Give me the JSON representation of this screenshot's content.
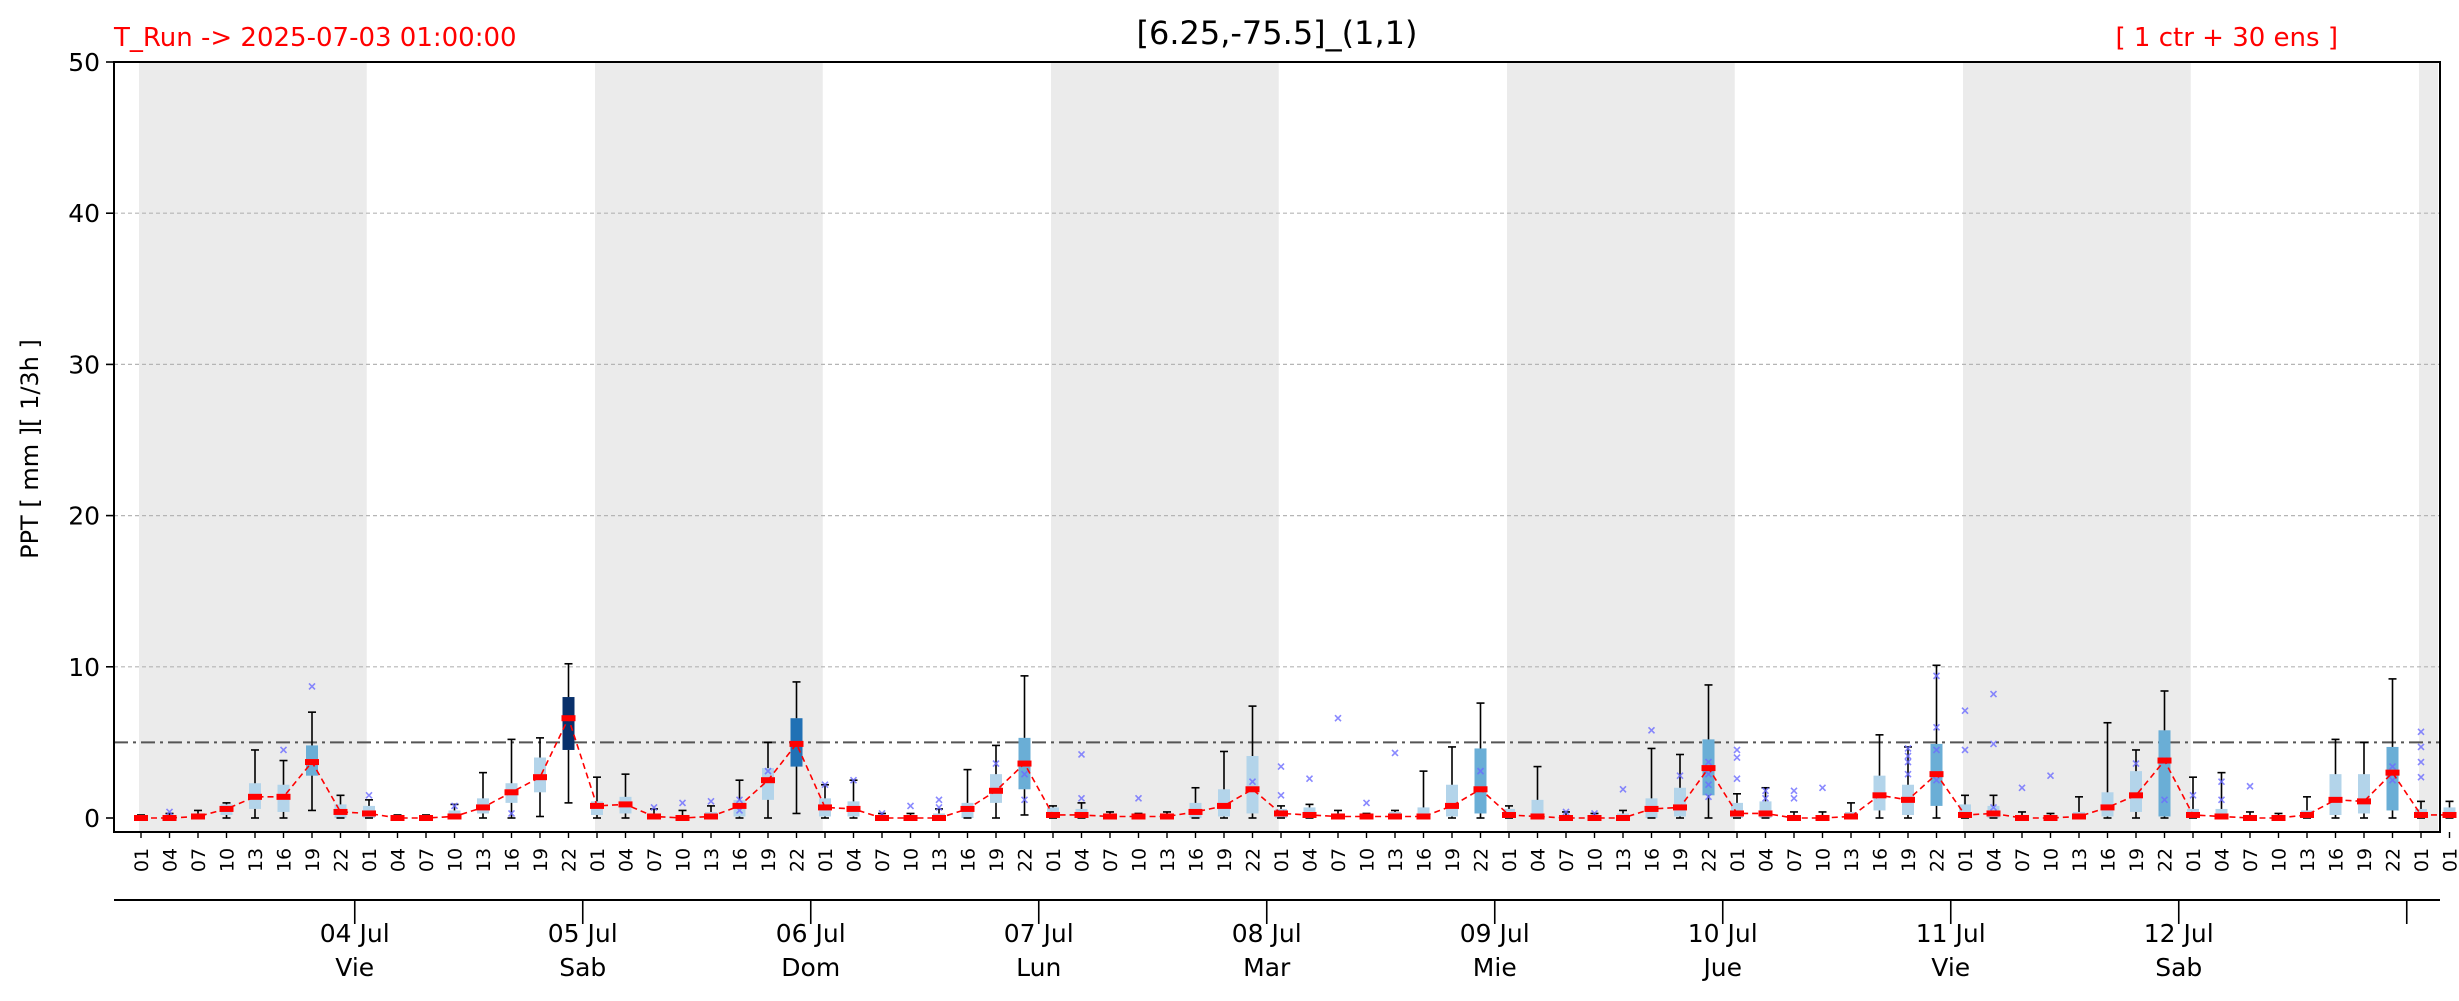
{
  "header": {
    "run_label": "T_Run -> 2025-07-03  01:00:00",
    "ensemble_label": "[ 1 ctr + 30 ens ]"
  },
  "colors": {
    "header_text": "#ff0000",
    "median_line": "#ff0000",
    "night_shade": "#ebebeb",
    "box_light": "#b3d4ea",
    "box_mid": "#6aaed6",
    "box_dark": "#2171b5",
    "box_darkest": "#08306b",
    "outlier": "#6b6bff",
    "threshold": "#555555"
  },
  "chart_data": {
    "type": "box",
    "title": "[6.25,-75.5]_(1,1)",
    "ylabel": "PPT  [ mm ][ 1/3h ]",
    "ylim": [
      0,
      50
    ],
    "yticks": [
      0,
      10,
      20,
      30,
      40,
      50
    ],
    "grid": true,
    "threshold": 5,
    "hours": [
      "01",
      "04",
      "07",
      "10",
      "13",
      "16",
      "19",
      "22"
    ],
    "days": [
      {
        "date": "",
        "weekday": ""
      },
      {
        "date": "04 Jul",
        "weekday": "Vie"
      },
      {
        "date": "05 Jul",
        "weekday": "Sab"
      },
      {
        "date": "06 Jul",
        "weekday": "Dom"
      },
      {
        "date": "07 Jul",
        "weekday": "Lun"
      },
      {
        "date": "08 Jul",
        "weekday": "Mar"
      },
      {
        "date": "09 Jul",
        "weekday": "Mie"
      },
      {
        "date": "10 Jul",
        "weekday": "Jue"
      },
      {
        "date": "11 Jul",
        "weekday": "Vie"
      },
      {
        "date": "12 Jul",
        "weekday": "Sab"
      },
      {
        "date": "",
        "weekday": ""
      }
    ],
    "final_day_hours": [
      "01"
    ],
    "median": [
      0.0,
      0.0,
      0.1,
      0.6,
      1.4,
      1.4,
      3.7,
      0.4,
      0.3,
      0.0,
      0.0,
      0.1,
      0.7,
      1.7,
      2.7,
      6.6,
      0.8,
      0.9,
      0.1,
      0.0,
      0.1,
      0.8,
      2.5,
      4.9,
      0.7,
      0.6,
      0.0,
      0.0,
      0.0,
      0.6,
      1.8,
      3.6,
      0.2,
      0.2,
      0.1,
      0.1,
      0.1,
      0.4,
      0.8,
      1.9,
      0.3,
      0.2,
      0.1,
      0.1,
      0.1,
      0.1,
      0.8,
      1.9,
      0.2,
      0.1,
      0.0,
      0.0,
      0.0,
      0.6,
      0.7,
      3.3,
      0.3,
      0.3,
      0.0,
      0.0,
      0.1,
      1.5,
      1.2,
      2.9,
      0.2,
      0.3,
      0.0,
      0.0,
      0.1,
      0.7,
      1.5,
      3.8,
      0.2,
      0.1,
      0.0,
      0.0,
      0.2,
      1.2,
      1.1,
      3.0,
      0.2,
      0.2
    ],
    "q1": [
      0,
      0,
      0,
      0.2,
      0.6,
      0.4,
      2.8,
      0,
      0,
      0,
      0,
      0,
      0.3,
      1.0,
      1.7,
      4.5,
      0.2,
      0.3,
      0,
      0,
      0,
      0.1,
      1.2,
      3.4,
      0.1,
      0.1,
      0,
      0,
      0,
      0,
      1.0,
      1.9,
      0,
      0,
      0,
      0,
      0,
      0,
      0.1,
      0.3,
      0,
      0,
      0,
      0,
      0,
      0,
      0.1,
      0.3,
      0,
      0,
      0,
      0,
      0,
      0,
      0.1,
      1.5,
      0,
      0,
      0,
      0,
      0,
      0.5,
      0.2,
      0.8,
      0,
      0,
      0,
      0,
      0,
      0.1,
      0.4,
      0.1,
      0,
      0,
      0,
      0,
      0,
      0.2,
      0.3,
      0.5,
      0,
      0
    ],
    "q3": [
      0.1,
      0.2,
      0.3,
      0.9,
      2.3,
      2.2,
      4.8,
      0.9,
      0.8,
      0.1,
      0.1,
      0.5,
      1.3,
      2.3,
      4.0,
      8.0,
      1.1,
      1.4,
      0.3,
      0.2,
      0.4,
      1.2,
      3.3,
      6.6,
      1.3,
      1.1,
      0.1,
      0.1,
      0.3,
      1.0,
      2.9,
      5.3,
      0.7,
      0.6,
      0.3,
      0.1,
      0.2,
      1.0,
      1.9,
      4.1,
      0.6,
      0.7,
      0.3,
      0.2,
      0.4,
      0.7,
      2.2,
      4.6,
      0.6,
      1.2,
      0.2,
      0.1,
      0.3,
      1.3,
      2.0,
      5.2,
      1.0,
      1.1,
      0.2,
      0.2,
      0.4,
      2.8,
      2.2,
      4.9,
      0.9,
      0.8,
      0.2,
      0.1,
      0.4,
      1.7,
      3.1,
      5.8,
      0.6,
      0.6,
      0.2,
      0.1,
      0.5,
      2.9,
      2.9,
      4.7,
      0.6,
      0.7
    ],
    "whisker_low": [
      0,
      0,
      0,
      0,
      0,
      0,
      0.5,
      0,
      0,
      0,
      0,
      0,
      0,
      0,
      0.1,
      1.0,
      0,
      0,
      0,
      0,
      0,
      0,
      0,
      0.3,
      0,
      0,
      0,
      0,
      0,
      0,
      0,
      0.2,
      0,
      0,
      0,
      0,
      0,
      0,
      0,
      0,
      0,
      0,
      0,
      0,
      0,
      0,
      0,
      0,
      0,
      0,
      0,
      0,
      0,
      0,
      0,
      0,
      0,
      0,
      0,
      0,
      0,
      0,
      0,
      0,
      0,
      0,
      0,
      0,
      0,
      0,
      0,
      0,
      0,
      0,
      0,
      0,
      0,
      0,
      0,
      0,
      0,
      0
    ],
    "whisker_high": [
      0.2,
      0.3,
      0.5,
      1.0,
      4.5,
      3.8,
      7.0,
      1.5,
      1.2,
      0.2,
      0.2,
      0.9,
      3.0,
      5.2,
      5.3,
      10.2,
      2.7,
      2.9,
      0.6,
      0.5,
      0.8,
      2.5,
      5.0,
      9.0,
      2.2,
      2.5,
      0.3,
      0.3,
      0.6,
      3.2,
      4.8,
      9.4,
      0.8,
      1.0,
      0.4,
      0.3,
      0.4,
      2.0,
      4.4,
      7.4,
      0.8,
      0.9,
      0.5,
      0.3,
      0.5,
      3.1,
      4.7,
      7.6,
      0.8,
      3.4,
      0.4,
      0.3,
      0.5,
      4.6,
      4.2,
      8.8,
      1.6,
      2.0,
      0.4,
      0.4,
      1.0,
      5.5,
      4.7,
      10.1,
      1.5,
      1.5,
      0.4,
      0.3,
      1.4,
      6.3,
      4.5,
      8.4,
      2.7,
      3.0,
      0.4,
      0.3,
      1.4,
      5.2,
      5.0,
      9.2,
      1.1,
      1.1
    ],
    "outliers": [
      [
        1,
        0.4
      ],
      [
        6,
        8.7
      ],
      [
        5,
        4.5
      ],
      [
        8,
        1.5
      ],
      [
        11,
        0.8
      ],
      [
        13,
        0.3
      ],
      [
        18,
        0.7
      ],
      [
        19,
        1.0
      ],
      [
        20,
        1.1
      ],
      [
        21,
        0.5
      ],
      [
        21,
        1.2
      ],
      [
        22,
        3.1
      ],
      [
        24,
        2.2
      ],
      [
        25,
        2.5
      ],
      [
        26,
        0.3
      ],
      [
        27,
        0.8
      ],
      [
        28,
        0.7
      ],
      [
        28,
        1.2
      ],
      [
        30,
        3.6
      ],
      [
        31,
        2.9
      ],
      [
        31,
        1.2
      ],
      [
        33,
        4.2
      ],
      [
        33,
        1.3
      ],
      [
        35,
        1.3
      ],
      [
        39,
        2.4
      ],
      [
        40,
        3.4
      ],
      [
        40,
        1.5
      ],
      [
        40,
        0.3
      ],
      [
        41,
        2.6
      ],
      [
        42,
        6.6
      ],
      [
        43,
        1.0
      ],
      [
        44,
        4.3
      ],
      [
        47,
        3.1
      ],
      [
        50,
        0.4
      ],
      [
        51,
        0.3
      ],
      [
        52,
        1.9
      ],
      [
        53,
        5.8
      ],
      [
        54,
        2.8
      ],
      [
        55,
        3.7
      ],
      [
        55,
        2.9
      ],
      [
        55,
        2.2
      ],
      [
        55,
        1.4
      ],
      [
        56,
        4.5
      ],
      [
        56,
        4.0
      ],
      [
        56,
        2.6
      ],
      [
        57,
        1.3
      ],
      [
        57,
        1.8
      ],
      [
        58,
        1.8
      ],
      [
        58,
        1.3
      ],
      [
        59,
        2.0
      ],
      [
        62,
        4.1
      ],
      [
        62,
        4.6
      ],
      [
        62,
        3.7
      ],
      [
        62,
        2.9
      ],
      [
        63,
        9.4
      ],
      [
        63,
        6.0
      ],
      [
        63,
        4.5
      ],
      [
        63,
        2.5
      ],
      [
        64,
        7.1
      ],
      [
        64,
        4.5
      ],
      [
        65,
        8.2
      ],
      [
        65,
        4.9
      ],
      [
        65,
        0.7
      ],
      [
        66,
        2.0
      ],
      [
        67,
        2.8
      ],
      [
        70,
        3.6
      ],
      [
        71,
        3.8
      ],
      [
        71,
        1.2
      ],
      [
        72,
        1.5
      ],
      [
        73,
        2.4
      ],
      [
        73,
        1.2
      ],
      [
        74,
        2.1
      ],
      [
        79,
        3.4
      ],
      [
        79,
        2.9
      ],
      [
        79,
        2.5
      ],
      [
        80,
        5.7
      ],
      [
        80,
        4.7
      ],
      [
        80,
        3.7
      ],
      [
        80,
        2.7
      ]
    ]
  }
}
